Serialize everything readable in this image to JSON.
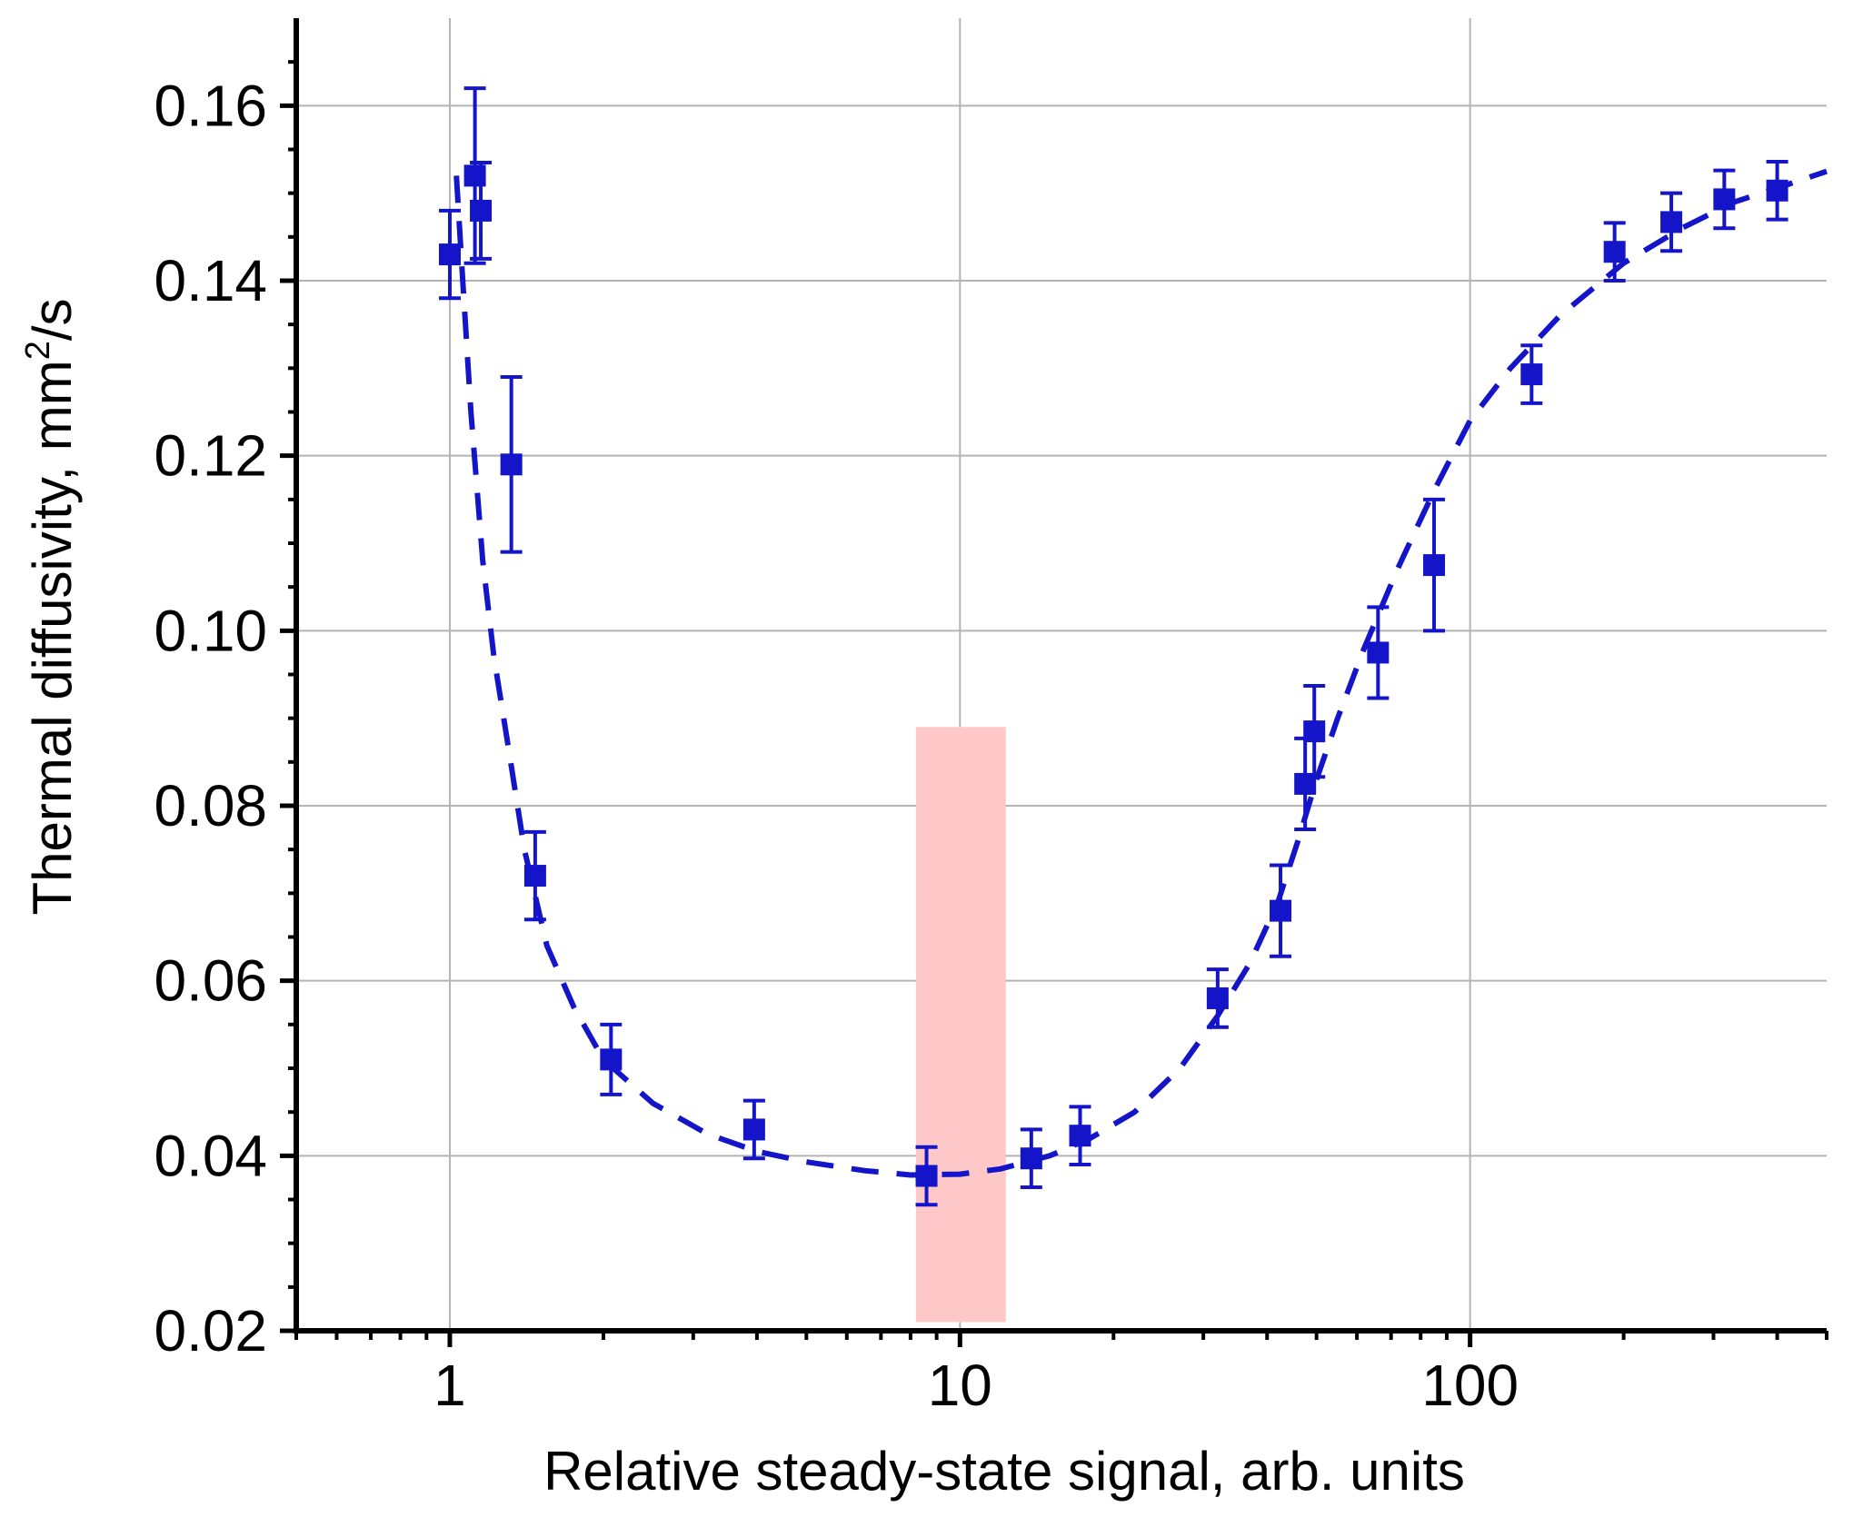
{
  "chart_data": {
    "type": "scatter",
    "title": "",
    "xlabel": "Relative steady-state signal, arb. units",
    "ylabel_main": "Thermal diffusivity, mm",
    "ylabel_sup": "2",
    "ylabel_tail": "/s",
    "x_scale": "log",
    "xlim": [
      0.5,
      500
    ],
    "ylim": [
      0.02,
      0.17
    ],
    "x_ticks": [
      1,
      10,
      100
    ],
    "x_tick_labels": [
      "1",
      "10",
      "100"
    ],
    "y_ticks": [
      0.02,
      0.04,
      0.06,
      0.08,
      0.1,
      0.12,
      0.14,
      0.16
    ],
    "y_tick_labels": [
      "0.02",
      "0.04",
      "0.06",
      "0.08",
      "0.10",
      "0.12",
      "0.14",
      "0.16"
    ],
    "grid": true,
    "colors": {
      "series": "#1414c8",
      "highlight": "#ffc8c8",
      "grid": "#b4b4b4",
      "axis": "#000000"
    },
    "highlight_band": {
      "x_range": [
        8.2,
        12.3
      ],
      "y_range": [
        0.021,
        0.089
      ]
    },
    "series": [
      {
        "name": "",
        "marker": "square",
        "points": [
          {
            "x": 1.0,
            "y": 0.143,
            "err": 0.005
          },
          {
            "x": 1.12,
            "y": 0.152,
            "err": 0.01
          },
          {
            "x": 1.15,
            "y": 0.148,
            "err": 0.0055
          },
          {
            "x": 1.32,
            "y": 0.119,
            "err": 0.01
          },
          {
            "x": 1.47,
            "y": 0.072,
            "err": 0.005
          },
          {
            "x": 2.07,
            "y": 0.051,
            "err": 0.004
          },
          {
            "x": 3.95,
            "y": 0.043,
            "err": 0.0033
          },
          {
            "x": 8.6,
            "y": 0.0377,
            "err": 0.0033
          },
          {
            "x": 13.8,
            "y": 0.0397,
            "err": 0.0033
          },
          {
            "x": 17.2,
            "y": 0.0423,
            "err": 0.0033
          },
          {
            "x": 32.0,
            "y": 0.058,
            "err": 0.0033
          },
          {
            "x": 42.5,
            "y": 0.068,
            "err": 0.0052
          },
          {
            "x": 47.5,
            "y": 0.0825,
            "err": 0.0052
          },
          {
            "x": 49.5,
            "y": 0.0885,
            "err": 0.0052
          },
          {
            "x": 66.0,
            "y": 0.0975,
            "err": 0.0052
          },
          {
            "x": 85.0,
            "y": 0.1075,
            "err": 0.0075
          },
          {
            "x": 132.0,
            "y": 0.1293,
            "err": 0.0033
          },
          {
            "x": 192.0,
            "y": 0.1433,
            "err": 0.0033
          },
          {
            "x": 248.0,
            "y": 0.1467,
            "err": 0.0033
          },
          {
            "x": 315.0,
            "y": 0.1493,
            "err": 0.0033
          },
          {
            "x": 400.0,
            "y": 0.1503,
            "err": 0.0033
          }
        ]
      }
    ],
    "fit_curve": {
      "style": "dashed",
      "points": [
        [
          1.03,
          0.152
        ],
        [
          1.06,
          0.14
        ],
        [
          1.1,
          0.125
        ],
        [
          1.16,
          0.108
        ],
        [
          1.22,
          0.097
        ],
        [
          1.3,
          0.087
        ],
        [
          1.4,
          0.075
        ],
        [
          1.55,
          0.064
        ],
        [
          1.75,
          0.057
        ],
        [
          2.0,
          0.051
        ],
        [
          2.5,
          0.046
        ],
        [
          3.2,
          0.0425
        ],
        [
          4.0,
          0.0405
        ],
        [
          5.0,
          0.0393
        ],
        [
          6.5,
          0.0383
        ],
        [
          8.0,
          0.0378
        ],
        [
          10.0,
          0.0379
        ],
        [
          12.0,
          0.0385
        ],
        [
          15.0,
          0.04
        ],
        [
          18.0,
          0.042
        ],
        [
          22.0,
          0.045
        ],
        [
          27.0,
          0.05
        ],
        [
          32.0,
          0.056
        ],
        [
          37.0,
          0.062
        ],
        [
          42.0,
          0.069
        ],
        [
          46.0,
          0.076
        ],
        [
          50.0,
          0.083
        ],
        [
          55.0,
          0.09
        ],
        [
          62.0,
          0.098
        ],
        [
          72.0,
          0.107
        ],
        [
          85.0,
          0.116
        ],
        [
          100.0,
          0.124
        ],
        [
          120.0,
          0.13
        ],
        [
          150.0,
          0.136
        ],
        [
          200.0,
          0.142
        ],
        [
          260.0,
          0.146
        ],
        [
          330.0,
          0.149
        ],
        [
          420.0,
          0.151
        ],
        [
          500.0,
          0.1525
        ]
      ]
    }
  }
}
